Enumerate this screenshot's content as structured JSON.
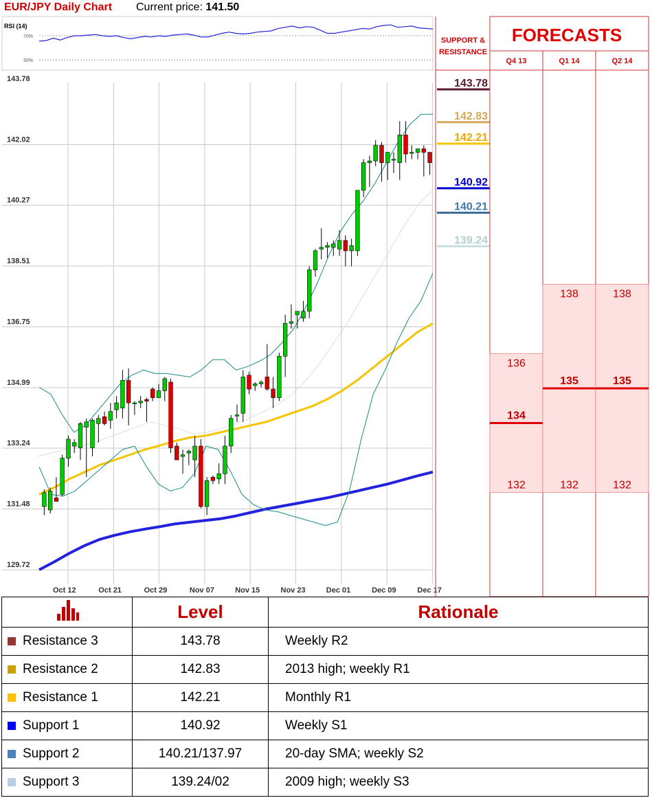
{
  "header": {
    "title": "EUR/JPY Daily Chart",
    "price_label": "Current price:",
    "price_value": "141.50"
  },
  "rsi": {
    "label": "RSI (14)",
    "level_labels": [
      "70%",
      "30%"
    ],
    "levels": [
      70,
      30
    ],
    "values": [
      61,
      62,
      66,
      63,
      67,
      70,
      70,
      71,
      72,
      70,
      69,
      70,
      67,
      65,
      67,
      69,
      68,
      70,
      69,
      71,
      72,
      73,
      71,
      68,
      68,
      71,
      74,
      76,
      74,
      73,
      74,
      76,
      77,
      78,
      82,
      84,
      86,
      83,
      85,
      84,
      79,
      74,
      74,
      76,
      78,
      80,
      82,
      81,
      85,
      87,
      88,
      84,
      85,
      86,
      83,
      82,
      81
    ]
  },
  "chart_data": {
    "type": "candlestick",
    "y_ticks": [
      "143.78",
      "142.02",
      "140.27",
      "138.51",
      "136.75",
      "134.99",
      "133.24",
      "131.48",
      "129.72"
    ],
    "ylim": [
      129.72,
      143.78
    ],
    "x_ticks": [
      "Oct 12",
      "Oct 21",
      "Oct 29",
      "Nov 07",
      "Nov 15",
      "Nov 23",
      "Dec 01",
      "Dec 09",
      "Dec 17"
    ],
    "candles": [
      {
        "o": 131.55,
        "h": 132.05,
        "l": 131.3,
        "c": 131.95
      },
      {
        "o": 131.45,
        "h": 132.1,
        "l": 131.35,
        "c": 132.0
      },
      {
        "o": 131.8,
        "h": 132.4,
        "l": 131.7,
        "c": 131.7
      },
      {
        "o": 131.9,
        "h": 133.05,
        "l": 131.85,
        "c": 132.95
      },
      {
        "o": 132.95,
        "h": 133.6,
        "l": 132.7,
        "c": 133.5
      },
      {
        "o": 133.3,
        "h": 133.5,
        "l": 133.1,
        "c": 133.4
      },
      {
        "o": 133.25,
        "h": 134.0,
        "l": 132.9,
        "c": 133.95
      },
      {
        "o": 133.85,
        "h": 134.1,
        "l": 132.4,
        "c": 134.0
      },
      {
        "o": 133.25,
        "h": 134.1,
        "l": 133.0,
        "c": 134.05
      },
      {
        "o": 133.95,
        "h": 134.2,
        "l": 133.4,
        "c": 134.1
      },
      {
        "o": 134.15,
        "h": 134.3,
        "l": 133.9,
        "c": 133.95
      },
      {
        "o": 134.05,
        "h": 134.55,
        "l": 133.8,
        "c": 134.3
      },
      {
        "o": 134.35,
        "h": 134.75,
        "l": 134.1,
        "c": 134.55
      },
      {
        "o": 134.4,
        "h": 135.5,
        "l": 134.1,
        "c": 135.2
      },
      {
        "o": 135.2,
        "h": 135.55,
        "l": 133.9,
        "c": 134.55
      },
      {
        "o": 134.55,
        "h": 134.6,
        "l": 134.2,
        "c": 134.55
      },
      {
        "o": 134.55,
        "h": 134.75,
        "l": 134.4,
        "c": 134.6
      },
      {
        "o": 134.65,
        "h": 134.7,
        "l": 134.0,
        "c": 134.6
      },
      {
        "o": 134.95,
        "h": 135.0,
        "l": 134.6,
        "c": 134.7
      },
      {
        "o": 134.7,
        "h": 135.1,
        "l": 134.7,
        "c": 134.9
      },
      {
        "o": 134.9,
        "h": 135.3,
        "l": 134.6,
        "c": 135.25
      },
      {
        "o": 135.15,
        "h": 135.25,
        "l": 133.1,
        "c": 133.25
      },
      {
        "o": 133.3,
        "h": 133.4,
        "l": 132.9,
        "c": 132.9
      },
      {
        "o": 133.0,
        "h": 133.2,
        "l": 132.5,
        "c": 133.05
      },
      {
        "o": 133.1,
        "h": 133.2,
        "l": 132.75,
        "c": 133.15
      },
      {
        "o": 132.9,
        "h": 133.6,
        "l": 132.4,
        "c": 133.3
      },
      {
        "o": 133.3,
        "h": 133.5,
        "l": 131.5,
        "c": 131.55
      },
      {
        "o": 131.55,
        "h": 132.4,
        "l": 131.3,
        "c": 132.3
      },
      {
        "o": 132.4,
        "h": 132.45,
        "l": 132.2,
        "c": 132.3
      },
      {
        "o": 132.35,
        "h": 132.8,
        "l": 132.2,
        "c": 132.5
      },
      {
        "o": 132.5,
        "h": 133.6,
        "l": 132.2,
        "c": 133.3
      },
      {
        "o": 133.3,
        "h": 134.2,
        "l": 133.1,
        "c": 134.1
      },
      {
        "o": 134.2,
        "h": 134.5,
        "l": 134.0,
        "c": 134.2
      },
      {
        "o": 134.25,
        "h": 135.5,
        "l": 134.0,
        "c": 135.3
      },
      {
        "o": 135.35,
        "h": 135.45,
        "l": 134.8,
        "c": 134.95
      },
      {
        "o": 135.05,
        "h": 135.15,
        "l": 134.9,
        "c": 135.1
      },
      {
        "o": 135.1,
        "h": 135.2,
        "l": 135.0,
        "c": 135.15
      },
      {
        "o": 135.3,
        "h": 136.25,
        "l": 134.9,
        "c": 134.95
      },
      {
        "o": 134.95,
        "h": 135.3,
        "l": 134.4,
        "c": 134.7
      },
      {
        "o": 134.7,
        "h": 136.0,
        "l": 134.6,
        "c": 135.9
      },
      {
        "o": 135.9,
        "h": 137.1,
        "l": 135.3,
        "c": 136.85
      },
      {
        "o": 136.85,
        "h": 137.4,
        "l": 136.7,
        "c": 136.9
      },
      {
        "o": 137.1,
        "h": 137.2,
        "l": 136.7,
        "c": 137.2
      },
      {
        "o": 137.0,
        "h": 137.5,
        "l": 136.9,
        "c": 137.2
      },
      {
        "o": 137.2,
        "h": 138.5,
        "l": 137.0,
        "c": 138.4
      },
      {
        "o": 138.4,
        "h": 139.0,
        "l": 138.2,
        "c": 138.95
      },
      {
        "o": 139.0,
        "h": 139.6,
        "l": 138.7,
        "c": 139.05
      },
      {
        "o": 139.05,
        "h": 139.2,
        "l": 138.75,
        "c": 139.1
      },
      {
        "o": 139.05,
        "h": 139.25,
        "l": 138.8,
        "c": 139.15
      },
      {
        "o": 139.0,
        "h": 139.55,
        "l": 138.8,
        "c": 139.25
      },
      {
        "o": 139.25,
        "h": 139.4,
        "l": 138.5,
        "c": 138.95
      },
      {
        "o": 138.95,
        "h": 139.3,
        "l": 138.5,
        "c": 139.1
      },
      {
        "o": 138.95,
        "h": 140.7,
        "l": 138.8,
        "c": 140.7
      },
      {
        "o": 140.7,
        "h": 141.6,
        "l": 140.5,
        "c": 141.5
      },
      {
        "o": 141.5,
        "h": 141.7,
        "l": 140.8,
        "c": 141.55
      },
      {
        "o": 141.55,
        "h": 142.15,
        "l": 141.4,
        "c": 142.0
      },
      {
        "o": 142.0,
        "h": 142.1,
        "l": 140.95,
        "c": 141.5
      },
      {
        "o": 141.5,
        "h": 141.8,
        "l": 141.0,
        "c": 141.8
      },
      {
        "o": 141.6,
        "h": 141.8,
        "l": 141.2,
        "c": 141.6
      },
      {
        "o": 141.5,
        "h": 142.7,
        "l": 141.0,
        "c": 142.3
      },
      {
        "o": 142.3,
        "h": 142.7,
        "l": 141.5,
        "c": 141.75
      },
      {
        "o": 141.8,
        "h": 142.0,
        "l": 141.6,
        "c": 141.8
      },
      {
        "o": 141.8,
        "h": 141.9,
        "l": 141.6,
        "c": 141.9
      },
      {
        "o": 141.9,
        "h": 142.0,
        "l": 141.1,
        "c": 141.8
      },
      {
        "o": 141.8,
        "h": 141.8,
        "l": 141.15,
        "c": 141.5
      }
    ],
    "sma_yellow": [
      131.9,
      132.1,
      132.35,
      132.55,
      132.75,
      132.9,
      133.05,
      133.2,
      133.32,
      133.45,
      133.55,
      133.6,
      133.7,
      133.8,
      133.9,
      134.0,
      134.15,
      134.3,
      134.45,
      134.65,
      134.9,
      135.2,
      135.55,
      135.9,
      136.25,
      136.6,
      136.85
    ],
    "sma_blue": [
      129.72,
      129.95,
      130.2,
      130.42,
      130.6,
      130.72,
      130.82,
      130.9,
      130.97,
      131.05,
      131.1,
      131.15,
      131.2,
      131.28,
      131.38,
      131.48,
      131.56,
      131.64,
      131.72,
      131.8,
      131.9,
      132.0,
      132.1,
      132.2,
      132.32,
      132.44,
      132.55
    ],
    "boll_upper": [
      135.0,
      134.8,
      134.2,
      133.7,
      133.9,
      134.3,
      134.7,
      135.1,
      135.35,
      135.5,
      135.4,
      135.4,
      135.35,
      135.3,
      135.5,
      135.8,
      135.8,
      135.5,
      135.6,
      135.75,
      135.95,
      136.3,
      136.7,
      137.3,
      138.0,
      138.8,
      139.5,
      140.0,
      140.4,
      140.9,
      141.5,
      142.1,
      142.6,
      142.9,
      142.9
    ],
    "boll_lower": [
      132.7,
      131.9,
      131.85,
      132.0,
      132.3,
      132.6,
      132.9,
      133.2,
      133.3,
      132.7,
      132.2,
      132.0,
      132.1,
      132.5,
      133.3,
      133.2,
      132.6,
      131.9,
      131.6,
      131.45,
      131.4,
      131.3,
      131.2,
      131.1,
      131.0,
      131.1,
      132.0,
      133.5,
      134.8,
      135.5,
      136.3,
      137.0,
      137.5,
      138.3
    ],
    "gray_line": [
      133.0,
      133.1,
      133.2,
      133.3,
      133.4,
      133.55,
      133.7,
      133.85,
      134.0,
      133.9,
      133.8,
      133.65,
      133.7,
      133.8,
      133.95,
      134.1,
      134.3,
      134.5,
      134.8,
      135.2,
      135.7,
      136.3,
      136.9,
      137.6,
      138.3,
      139.0,
      139.7,
      140.3,
      140.7
    ]
  },
  "sr_panel": {
    "title": "SUPPORT & RESISTANCE",
    "levels": [
      {
        "label": "143.78",
        "value": 143.78,
        "color": "#5a1a30",
        "line": "#5a1a30",
        "bold": true
      },
      {
        "label": "142.83",
        "value": 142.83,
        "color": "#d4a95c",
        "line": "#d4a95c",
        "bold": true
      },
      {
        "label": "142.21",
        "value": 142.21,
        "color": "#e8a800",
        "line": "#f5c400",
        "bold": true
      },
      {
        "label": "140.92",
        "value": 140.92,
        "color": "#0000cc",
        "line": "#0000cc",
        "bold": true
      },
      {
        "label": "140.21",
        "value": 140.21,
        "color": "#3b7aa8",
        "line": "#3b6f9a",
        "bold": true
      },
      {
        "label": "139.24",
        "value": 139.24,
        "color": "#b0d0d0",
        "line": "#c8dede",
        "bold": true
      }
    ]
  },
  "forecasts": {
    "title": "FORECASTS",
    "columns": [
      {
        "label": "Q4 13",
        "high": 136,
        "mid": 134,
        "low": 132,
        "high_label": "136",
        "mid_label": "134",
        "low_label": "132"
      },
      {
        "label": "Q1 14",
        "high": 138,
        "mid": 135,
        "low": 132,
        "high_label": "138",
        "mid_label": "135",
        "low_label": "132"
      },
      {
        "label": "Q2 14",
        "high": 138,
        "mid": 135,
        "low": 132,
        "high_label": "138",
        "mid_label": "135",
        "low_label": "132"
      }
    ]
  },
  "colors": {
    "up": "#00cc00",
    "down": "#dd0000",
    "accent": "#d00000",
    "bollinger": "#1a8a8a",
    "sma_yellow": "#f5c400",
    "sma_blue": "#2222dd"
  },
  "levels_table": {
    "header_icon": "bar-chart-icon",
    "headers": [
      "Level",
      "Rationale"
    ],
    "rows": [
      {
        "name": "Resistance 3",
        "level": "143.78",
        "rationale": "Weekly R2",
        "color": "#953735"
      },
      {
        "name": "Resistance 2",
        "level": "142.83",
        "rationale": "2013 high; weekly R1",
        "color": "#c9a200"
      },
      {
        "name": "Resistance 1",
        "level": "142.21",
        "rationale": "Monthly R1",
        "color": "#ffc000"
      },
      {
        "name": "Support 1",
        "level": "140.92",
        "rationale": "Weekly S1",
        "color": "#0000ff"
      },
      {
        "name": "Support 2",
        "level": "140.21/137.97",
        "rationale": "20-day SMA; weekly S2",
        "color": "#4f81bd"
      },
      {
        "name": "Support 3",
        "level": "139.24/02",
        "rationale": "2009 high; weekly S3",
        "color": "#b9cde5"
      }
    ]
  }
}
